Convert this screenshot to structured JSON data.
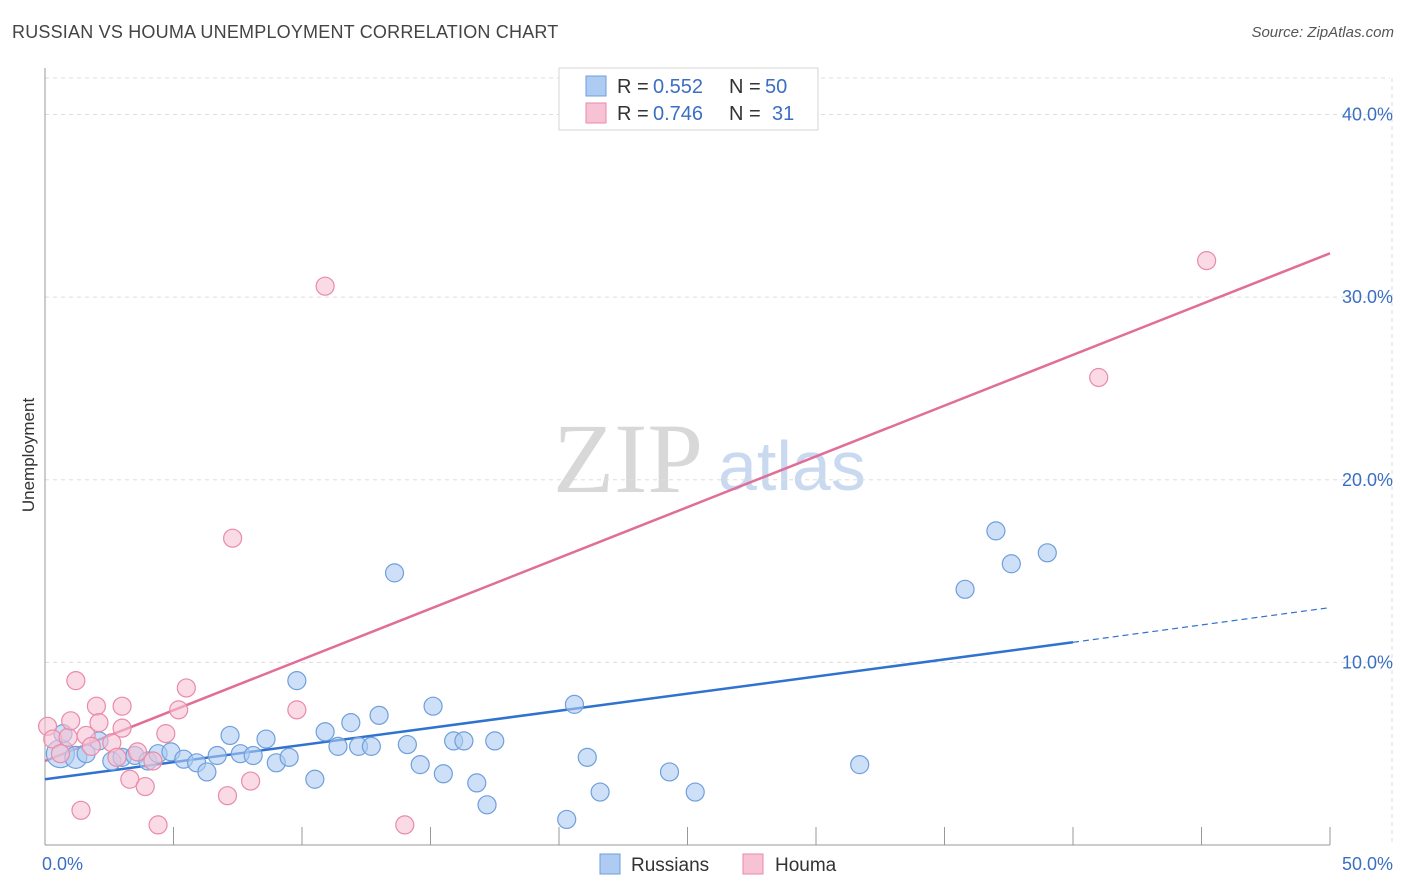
{
  "header": {
    "title": "RUSSIAN VS HOUMA UNEMPLOYMENT CORRELATION CHART",
    "source": "Source: ZipAtlas.com"
  },
  "watermark": {
    "zip": "ZIP",
    "atlas": "atlas"
  },
  "colors": {
    "russians_fill": "#aecbf1",
    "russians_stroke": "#6f9fdc",
    "russians_line": "#2f72cf",
    "houma_fill": "#f7c2d3",
    "houma_stroke": "#e98aa9",
    "houma_line": "#e06e98",
    "grid": "#dddddd",
    "tick_label": "#3a6fc4"
  },
  "legend_top": {
    "rows": [
      {
        "r_label": "R =",
        "r_value": "0.552",
        "n_label": "N =",
        "n_value": "50"
      },
      {
        "r_label": "R =",
        "r_value": "0.746",
        "n_label": "N =",
        "n_value": "31"
      }
    ]
  },
  "legend_bottom": {
    "series1": "Russians",
    "series2": "Houma"
  },
  "chart_data": {
    "type": "scatter",
    "title": "RUSSIAN VS HOUMA UNEMPLOYMENT CORRELATION CHART",
    "xlabel": "",
    "ylabel": "Unemployment",
    "xlim": [
      0,
      50
    ],
    "ylim": [
      0,
      42
    ],
    "x_tick_labels": [
      "0.0%",
      "50.0%"
    ],
    "y_ticks": [
      10,
      20,
      30,
      40
    ],
    "y_tick_labels": [
      "10.0%",
      "20.0%",
      "30.0%",
      "40.0%"
    ],
    "grid": true,
    "series": [
      {
        "name": "Russians",
        "r": 0.552,
        "n": 50,
        "trend": {
          "x0": 0,
          "y0": 3.6,
          "x1": 40,
          "y1": 11.1,
          "dash_to_x": 50,
          "dash_to_y": 13.0
        },
        "points": [
          [
            0.6,
            5.0,
            14
          ],
          [
            0.7,
            6.1,
            9
          ],
          [
            1.2,
            4.8,
            11
          ],
          [
            1.6,
            5.0,
            9
          ],
          [
            2.1,
            5.7,
            9
          ],
          [
            2.6,
            4.6,
            9
          ],
          [
            3.0,
            4.8,
            9
          ],
          [
            3.5,
            4.9,
            9
          ],
          [
            4.0,
            4.6,
            9
          ],
          [
            4.4,
            5.0,
            9
          ],
          [
            4.9,
            5.1,
            9
          ],
          [
            5.4,
            4.7,
            9
          ],
          [
            5.9,
            4.5,
            9
          ],
          [
            6.3,
            4.0,
            9
          ],
          [
            6.7,
            4.9,
            9
          ],
          [
            7.2,
            6.0,
            9
          ],
          [
            7.6,
            5.0,
            9
          ],
          [
            8.1,
            4.9,
            9
          ],
          [
            8.6,
            5.8,
            9
          ],
          [
            9.0,
            4.5,
            9
          ],
          [
            9.5,
            4.8,
            9
          ],
          [
            9.8,
            9.0,
            9
          ],
          [
            10.5,
            3.6,
            9
          ],
          [
            10.9,
            6.2,
            9
          ],
          [
            11.4,
            5.4,
            9
          ],
          [
            11.9,
            6.7,
            9
          ],
          [
            12.2,
            5.4,
            9
          ],
          [
            12.7,
            5.4,
            9
          ],
          [
            13.0,
            7.1,
            9
          ],
          [
            13.6,
            14.9,
            9
          ],
          [
            14.1,
            5.5,
            9
          ],
          [
            14.6,
            4.4,
            9
          ],
          [
            15.1,
            7.6,
            9
          ],
          [
            15.5,
            3.9,
            9
          ],
          [
            15.9,
            5.7,
            9
          ],
          [
            16.3,
            5.7,
            9
          ],
          [
            16.8,
            3.4,
            9
          ],
          [
            17.2,
            2.2,
            9
          ],
          [
            17.5,
            5.7,
            9
          ],
          [
            20.3,
            1.4,
            9
          ],
          [
            20.6,
            7.7,
            9
          ],
          [
            21.1,
            4.8,
            9
          ],
          [
            21.6,
            2.9,
            9
          ],
          [
            24.3,
            4.0,
            9
          ],
          [
            25.3,
            2.9,
            9
          ],
          [
            31.7,
            4.4,
            9
          ],
          [
            35.8,
            14.0,
            9
          ],
          [
            37.0,
            17.2,
            9
          ],
          [
            37.6,
            15.4,
            9
          ],
          [
            39.0,
            16.0,
            9
          ]
        ]
      },
      {
        "name": "Houma",
        "r": 0.746,
        "n": 31,
        "trend": {
          "x0": 0,
          "y0": 4.6,
          "x1": 50,
          "y1": 32.4
        },
        "points": [
          [
            0.1,
            6.5,
            9
          ],
          [
            0.3,
            5.8,
            9
          ],
          [
            0.6,
            5.0,
            9
          ],
          [
            0.9,
            5.9,
            9
          ],
          [
            1.0,
            6.8,
            9
          ],
          [
            1.2,
            9.0,
            9
          ],
          [
            1.4,
            1.9,
            9
          ],
          [
            1.6,
            6.0,
            9
          ],
          [
            1.8,
            5.4,
            9
          ],
          [
            2.0,
            7.6,
            9
          ],
          [
            2.1,
            6.7,
            9
          ],
          [
            2.6,
            5.6,
            9
          ],
          [
            2.8,
            4.8,
            9
          ],
          [
            3.0,
            6.4,
            9
          ],
          [
            3.0,
            7.6,
            9
          ],
          [
            3.3,
            3.6,
            9
          ],
          [
            3.6,
            5.1,
            9
          ],
          [
            3.9,
            3.2,
            9
          ],
          [
            4.2,
            4.6,
            9
          ],
          [
            4.4,
            1.1,
            9
          ],
          [
            4.7,
            6.1,
            9
          ],
          [
            5.2,
            7.4,
            9
          ],
          [
            5.5,
            8.6,
            9
          ],
          [
            7.1,
            2.7,
            9
          ],
          [
            7.3,
            16.8,
            9
          ],
          [
            8.0,
            3.5,
            9
          ],
          [
            9.8,
            7.4,
            9
          ],
          [
            10.9,
            30.6,
            9
          ],
          [
            14.0,
            1.1,
            9
          ],
          [
            41.0,
            25.6,
            9
          ],
          [
            45.2,
            32.0,
            9
          ]
        ]
      }
    ]
  }
}
